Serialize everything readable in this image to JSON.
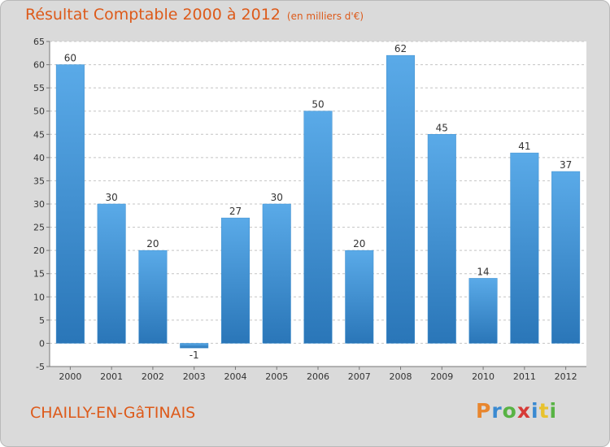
{
  "title": "Résultat Comptable 2000 à 2012",
  "subtitle": "(en milliers d'€)",
  "town": "CHAILLY-EN-GâTINAIS",
  "logo_text": "Proxiti",
  "colors": {
    "bar": "#4f9fe0",
    "bar_dark": "#2a76b8",
    "title": "#dd5a1a",
    "grid": "#c4c4c4",
    "plot_bg": "#ffffff"
  },
  "chart_data": {
    "type": "bar",
    "categories": [
      "2000",
      "2001",
      "2002",
      "2003",
      "2004",
      "2005",
      "2006",
      "2007",
      "2008",
      "2009",
      "2010",
      "2011",
      "2012"
    ],
    "values": [
      60,
      30,
      20,
      -1,
      27,
      30,
      50,
      20,
      62,
      45,
      14,
      41,
      37
    ],
    "ylim": [
      -5,
      65
    ],
    "yticks": [
      -5,
      0,
      5,
      10,
      15,
      20,
      25,
      30,
      35,
      40,
      45,
      50,
      55,
      60,
      65
    ],
    "title": "Résultat Comptable 2000 à 2012",
    "xlabel": "",
    "ylabel": "",
    "grid": true,
    "data_labels": true
  }
}
